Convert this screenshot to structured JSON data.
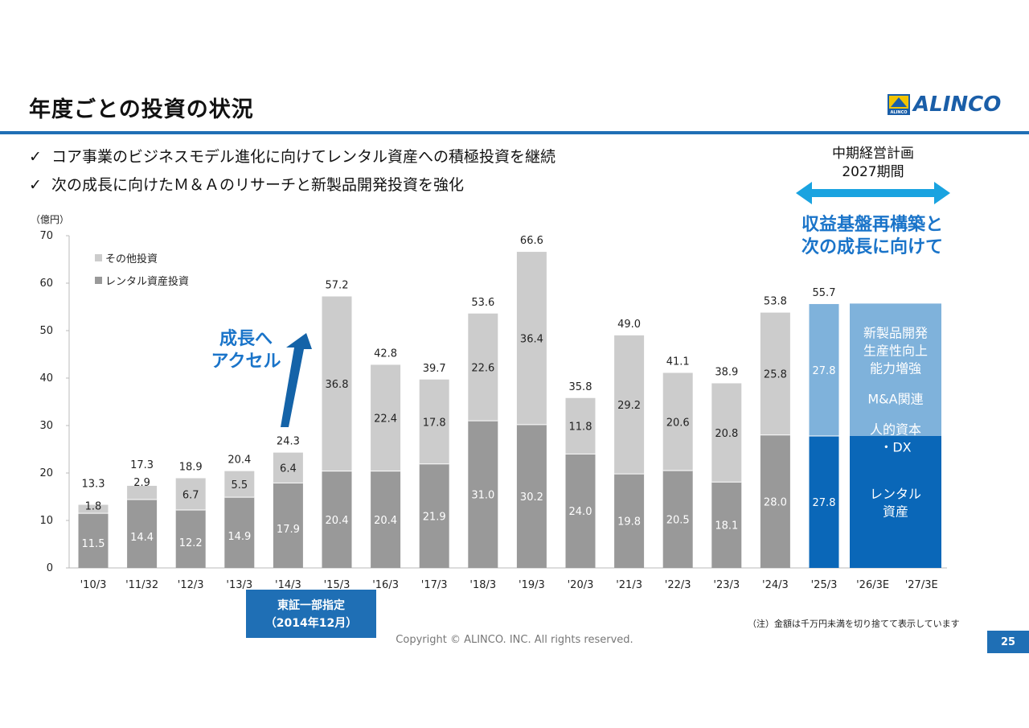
{
  "page": {
    "title": "年度ごとの投資の状況",
    "logo_text": "ALINCO",
    "logo_small": "ALINCO",
    "bullets": [
      "コア事業のビジネスモデル進化に向けてレンタル資産への積極投資を継続",
      "次の成長に向けたＭ＆Ａのリサーチと新製品開発投資を強化"
    ],
    "bullet_mark": "✓",
    "plan_heading_line1": "中期経営計画",
    "plan_heading_line2": "2027期間",
    "plan_theme_line1": "収益基盤再構築と",
    "plan_theme_line2": "次の成長に向けて",
    "footnote": "（注）金額は千万円未満を切り捨てて表示しています",
    "copyright": "Copyright © ALINCO. INC. All rights reserved.",
    "page_number": "25",
    "colors": {
      "accent": "#1f6fb5",
      "rental_bar": "#999999",
      "other_bar": "#cccccc",
      "plan_dark": "#0a67b8",
      "plan_light": "#7fb2db"
    }
  },
  "chart_data": {
    "type": "bar",
    "stacked": true,
    "unit_label": "（億円）",
    "ylim": [
      0,
      70
    ],
    "yticks": [
      0,
      10,
      20,
      30,
      40,
      50,
      60,
      70
    ],
    "grid": false,
    "legend_position": "top-left",
    "categories": [
      "'10/3",
      "'11/32",
      "'12/3",
      "'13/3",
      "'14/3",
      "'15/3",
      "'16/3",
      "'17/3",
      "'18/3",
      "'19/3",
      "'20/3",
      "'21/3",
      "'22/3",
      "'23/3",
      "'24/3",
      "'25/3",
      "'26/3E",
      "'27/3E"
    ],
    "series": [
      {
        "name": "レンタル資産投資",
        "values": [
          11.5,
          14.4,
          12.2,
          14.9,
          17.9,
          20.4,
          20.4,
          21.9,
          31.0,
          30.2,
          24.0,
          19.8,
          20.5,
          18.1,
          28.0,
          27.8,
          null,
          null
        ],
        "labels": [
          "11.5",
          "14.4",
          "12.2",
          "14.9",
          "17.9",
          "20.4",
          "20.4",
          "21.9",
          "31.0",
          "30.2",
          "24.0",
          "19.8",
          "20.5",
          "18.1",
          "28.0",
          "27.8",
          "",
          ""
        ]
      },
      {
        "name": "その他投資",
        "values": [
          1.8,
          2.9,
          6.7,
          5.5,
          6.4,
          36.8,
          22.4,
          17.8,
          22.6,
          36.4,
          11.8,
          29.2,
          20.6,
          20.8,
          25.8,
          27.8,
          null,
          null
        ],
        "labels": [
          "1.8",
          "2.9",
          "6.7",
          "5.5",
          "6.4",
          "36.8",
          "22.4",
          "17.8",
          "22.6",
          "36.4",
          "11.8",
          "29.2",
          "20.6",
          "20.8",
          "25.8",
          "27.8",
          "",
          ""
        ]
      }
    ],
    "totals": [
      "13.3",
      "17.3",
      "18.9",
      "20.4",
      "24.3",
      "57.2",
      "42.8",
      "39.7",
      "53.6",
      "66.6",
      "35.8",
      "49.0",
      "41.1",
      "38.9",
      "53.8",
      "55.7",
      "",
      ""
    ],
    "plan_block": {
      "lower_value": 27.8,
      "total_value": 55.7,
      "upper_text_lines": [
        "新製品開発",
        "生産性向上",
        "能力増強",
        "",
        "M&A関連",
        "",
        "人的資本",
        "・DX"
      ],
      "lower_text_lines": [
        "レンタル",
        "資産"
      ]
    },
    "annotations": {
      "growth_line1": "成長へ",
      "growth_line2": "アクセル",
      "listing_line1": "東証一部指定",
      "listing_line2": "（2014年12月）"
    }
  }
}
